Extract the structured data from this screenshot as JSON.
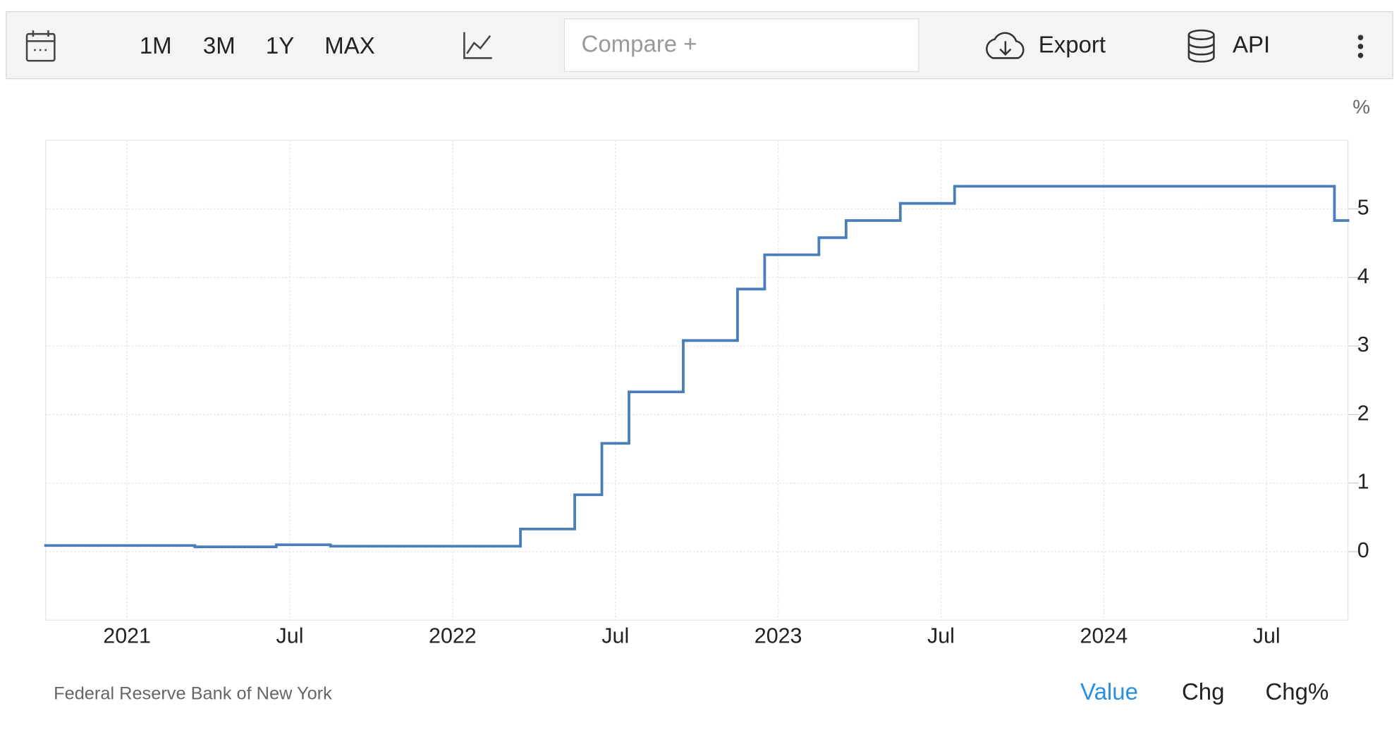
{
  "toolbar": {
    "ranges": [
      "1M",
      "3M",
      "1Y",
      "MAX"
    ],
    "compare": "Compare +",
    "export": "Export",
    "api": "API"
  },
  "chart_data": {
    "type": "step",
    "unit": "%",
    "x": [
      "2020-10",
      "2021-03",
      "2021-06",
      "2021-08",
      "2022-03",
      "2022-05",
      "2022-06",
      "2022-07",
      "2022-09",
      "2022-11",
      "2022-12",
      "2023-02",
      "2023-03",
      "2023-05",
      "2023-07",
      "2024-09"
    ],
    "series": [
      {
        "name": "Value",
        "color": "#4a7ebb",
        "values": [
          0.09,
          0.07,
          0.1,
          0.08,
          0.33,
          0.83,
          1.58,
          2.33,
          3.08,
          3.83,
          4.33,
          4.58,
          4.83,
          5.08,
          5.33,
          4.83
        ]
      }
    ],
    "xlim": [
      "2020-10",
      "2024-10"
    ],
    "xticks": [
      {
        "value": "2021-01",
        "label": "2021"
      },
      {
        "value": "2021-07",
        "label": "Jul"
      },
      {
        "value": "2022-01",
        "label": "2022"
      },
      {
        "value": "2022-07",
        "label": "Jul"
      },
      {
        "value": "2023-01",
        "label": "2023"
      },
      {
        "value": "2023-07",
        "label": "Jul"
      },
      {
        "value": "2024-01",
        "label": "2024"
      },
      {
        "value": "2024-07",
        "label": "Jul"
      }
    ],
    "ylim": [
      -1,
      6
    ],
    "yticks": [
      0,
      1,
      2,
      3,
      4,
      5
    ],
    "grid": true
  },
  "footer": {
    "source": "Federal Reserve Bank of New York",
    "views": [
      "Value",
      "Chg",
      "Chg%"
    ]
  }
}
